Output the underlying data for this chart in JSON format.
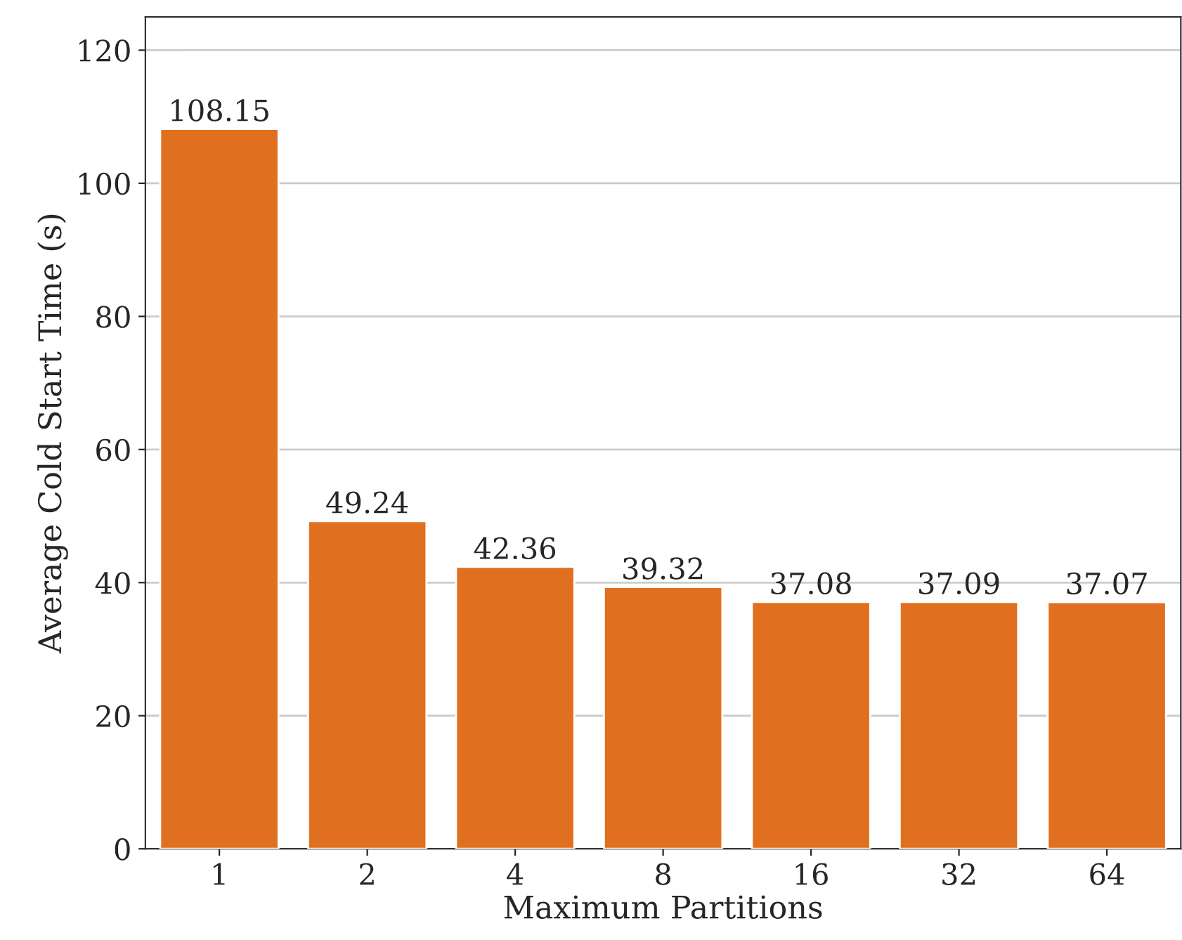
{
  "chart_data": {
    "type": "bar",
    "xlabel": "Maximum Partitions",
    "ylabel": "Average Cold Start Time (s)",
    "categories": [
      "1",
      "2",
      "4",
      "8",
      "16",
      "32",
      "64"
    ],
    "values": [
      108.15,
      49.24,
      42.36,
      39.32,
      37.08,
      37.09,
      37.07
    ],
    "color": "#e07020",
    "ylim": [
      0,
      125
    ],
    "yticks": [
      0,
      20,
      40,
      60,
      80,
      100,
      120
    ],
    "grid": "y",
    "data_labels": true
  }
}
